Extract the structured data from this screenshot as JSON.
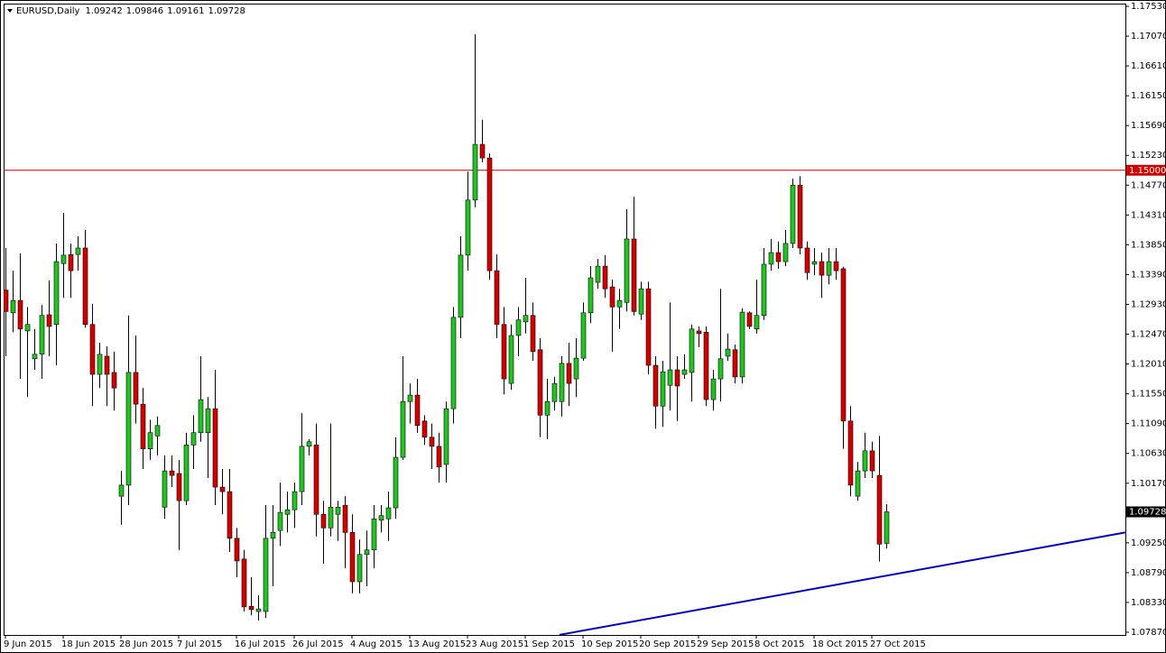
{
  "chart_data": {
    "type": "candlestick",
    "title": "EURUSD,Daily",
    "categories": [
      "9 Jun 2015",
      null,
      null,
      null,
      null,
      null,
      null,
      null,
      "18 Jun 2015",
      null,
      null,
      null,
      null,
      null,
      null,
      null,
      "28 Jun 2015",
      null,
      null,
      null,
      null,
      null,
      null,
      null,
      "7 Jul 2015",
      null,
      null,
      null,
      null,
      null,
      null,
      null,
      "16 Jul 2015",
      null,
      null,
      null,
      null,
      null,
      null,
      null,
      "26 Jul 2015",
      null,
      null,
      null,
      null,
      null,
      null,
      null,
      "4 Aug 2015",
      null,
      null,
      null,
      null,
      null,
      null,
      null,
      "13 Aug 2015",
      null,
      null,
      null,
      null,
      null,
      null,
      null,
      "23 Aug 2015",
      null,
      null,
      null,
      null,
      null,
      null,
      null,
      "1 Sep 2015",
      null,
      null,
      null,
      null,
      null,
      null,
      null,
      "10 Sep 2015",
      null,
      null,
      null,
      null,
      null,
      null,
      null,
      "20 Sep 2015",
      null,
      null,
      null,
      null,
      null,
      null,
      null,
      "29 Sep 2015",
      null,
      null,
      null,
      null,
      null,
      null,
      null,
      "8 Oct 2015",
      null,
      null,
      null,
      null,
      null,
      null,
      null,
      "18 Oct 2015",
      null,
      null,
      null,
      null,
      null,
      null,
      null,
      "27 Oct 2015",
      null,
      null
    ],
    "open": [
      1.1315,
      1.128,
      1.1299,
      1.1252,
      1.1209,
      1.1216,
      1.1277,
      1.1262,
      1.1356,
      1.137,
      1.137,
      1.138,
      1.1262,
      1.1185,
      1.1213,
      1.1188,
      1.0997,
      1.1014,
      1.1188,
      1.1139,
      1.107,
      1.109,
      1.098,
      1.1036,
      1.1032,
      1.099,
      1.1076,
      1.1095,
      1.1095,
      1.1132,
      1.1011,
      1.1004,
      1.0932,
      1.09,
      1.0827,
      1.0819,
      1.0819,
      1.0932,
      1.0944,
      1.0969,
      1.0976,
      1.1004,
      1.1074,
      1.1076,
      1.0969,
      1.0948,
      1.0969,
      1.0983,
      1.0941,
      1.0865,
      1.0907,
      1.0914,
      1.096,
      1.0962,
      1.0979,
      1.1057,
      1.1143,
      1.1153,
      1.1113,
      1.1088,
      1.1074,
      1.1046,
      1.1132,
      1.1273,
      1.1369,
      1.1454,
      1.154,
      1.1519,
      1.1345,
      1.1262,
      1.1171,
      1.1245,
      1.1266,
      1.1276,
      1.1223,
      1.1122,
      1.1143,
      1.1143,
      1.1202,
      1.1178,
      1.121,
      1.128,
      1.1327,
      1.1352,
      1.132,
      1.1289,
      1.1296,
      1.1394,
      1.1278,
      1.1317,
      1.1199,
      1.1136,
      1.1168,
      1.1192,
      1.1185,
      1.1188,
      1.1252,
      1.125,
      1.1146,
      1.1178,
      1.1213,
      1.1223,
      1.1181,
      1.128,
      1.1255,
      1.1276,
      1.1355,
      1.1373,
      1.1359,
      1.1387,
      1.1477,
      1.138,
      1.1355,
      1.1359,
      1.1338,
      1.1359,
      1.1348,
      1.1113,
      1.0997,
      1.1036,
      1.1067,
      1.1029,
      1.09242
    ],
    "high": [
      1.138,
      1.1345,
      1.1372,
      1.1289,
      1.1255,
      1.1292,
      1.133,
      1.1387,
      1.1434,
      1.1387,
      1.1398,
      1.1408,
      1.1294,
      1.1234,
      1.1228,
      1.122,
      1.1036,
      1.1276,
      1.1245,
      1.1164,
      1.1115,
      1.112,
      1.106,
      1.106,
      1.1053,
      1.1095,
      1.1122,
      1.1213,
      1.115,
      1.1192,
      1.1039,
      1.1039,
      1.0948,
      1.0914,
      1.0872,
      1.0844,
      1.0983,
      1.0983,
      1.1018,
      1.1004,
      1.1018,
      1.1125,
      1.1085,
      1.1109,
      1.099,
      1.1109,
      1.099,
      1.0997,
      1.0969,
      1.093,
      1.0944,
      1.0983,
      1.0983,
      1.1004,
      1.1088,
      1.1213,
      1.1171,
      1.1178,
      1.1122,
      1.1109,
      1.1095,
      1.1143,
      1.1289,
      1.1398,
      1.1498,
      1.171,
      1.1578,
      1.1526,
      1.137,
      1.1289,
      1.1262,
      1.1289,
      1.1334,
      1.1296,
      1.1241,
      1.1178,
      1.1181,
      1.1213,
      1.1234,
      1.1241,
      1.1296,
      1.1352,
      1.1363,
      1.1369,
      1.1331,
      1.1317,
      1.144,
      1.1459,
      1.1328,
      1.1328,
      1.1213,
      1.1206,
      1.1296,
      1.1213,
      1.1216,
      1.1262,
      1.1259,
      1.1259,
      1.1192,
      1.1317,
      1.1248,
      1.1231,
      1.1287,
      1.1282,
      1.1331,
      1.138,
      1.1394,
      1.139,
      1.1408,
      1.1487,
      1.1491,
      1.139,
      1.138,
      1.1373,
      1.138,
      1.138,
      1.1351,
      1.1136,
      1.105,
      1.1095,
      1.1081,
      1.109,
      1.09846
    ],
    "low": [
      1.1213,
      1.125,
      1.1178,
      1.115,
      1.1192,
      1.1178,
      1.1213,
      1.1199,
      1.1303,
      1.1303,
      1.1345,
      1.1257,
      1.1136,
      1.1164,
      1.1136,
      1.1129,
      1.0953,
      1.0983,
      1.1109,
      1.1039,
      1.1053,
      1.106,
      1.0962,
      1.1011,
      1.0914,
      1.0983,
      1.1039,
      1.1081,
      1.1025,
      1.0983,
      1.0969,
      1.0911,
      1.0872,
      1.0819,
      1.0813,
      1.0805,
      1.0809,
      1.0858,
      1.092,
      1.0941,
      1.0948,
      1.0983,
      1.106,
      1.0935,
      1.0893,
      1.0935,
      1.0928,
      1.0886,
      1.0847,
      1.0847,
      1.0858,
      1.0886,
      1.0941,
      1.0928,
      1.0962,
      1.1053,
      1.1109,
      1.1095,
      1.1076,
      1.1039,
      1.1018,
      1.1018,
      1.1109,
      1.1241,
      1.1345,
      1.1443,
      1.1512,
      1.1331,
      1.1241,
      1.1154,
      1.1161,
      1.1213,
      1.1248,
      1.1206,
      1.1088,
      1.1085,
      1.1129,
      1.112,
      1.1136,
      1.115,
      1.1206,
      1.1264,
      1.1317,
      1.1303,
      1.122,
      1.1255,
      1.1282,
      1.1276,
      1.1269,
      1.1185,
      1.1101,
      1.1104,
      1.1129,
      1.1113,
      1.1178,
      1.1143,
      1.1227,
      1.1136,
      1.1129,
      1.1143,
      1.1206,
      1.1171,
      1.1171,
      1.1255,
      1.1248,
      1.1269,
      1.1345,
      1.1348,
      1.1352,
      1.138,
      1.137,
      1.1331,
      1.1338,
      1.1303,
      1.1324,
      1.1331,
      1.107,
      1.0997,
      1.099,
      1.1025,
      1.1025,
      1.0896,
      1.09161
    ],
    "close": [
      1.1282,
      1.1299,
      1.1255,
      1.1262,
      1.1216,
      1.1276,
      1.1259,
      1.1359,
      1.1369,
      1.1345,
      1.138,
      1.1262,
      1.1185,
      1.1216,
      1.1185,
      1.1164,
      1.1014,
      1.1188,
      1.1139,
      1.107,
      1.1095,
      1.1106,
      1.1036,
      1.1029,
      1.099,
      1.1076,
      1.1095,
      1.1146,
      1.1132,
      1.1011,
      1.1004,
      1.0932,
      1.0897,
      1.0826,
      1.0822,
      1.0823,
      1.0932,
      1.0941,
      1.0972,
      1.0976,
      1.1004,
      1.1074,
      1.1081,
      1.0969,
      1.0948,
      1.098,
      1.098,
      1.0941,
      1.0865,
      1.0907,
      1.0914,
      1.0962,
      1.0967,
      1.0979,
      1.1057,
      1.1143,
      1.1153,
      1.1106,
      1.1088,
      1.1074,
      1.1042,
      1.1132,
      1.1273,
      1.1369,
      1.1454,
      1.154,
      1.1519,
      1.1345,
      1.1262,
      1.1178,
      1.1245,
      1.1269,
      1.1276,
      1.122,
      1.1122,
      1.1143,
      1.1171,
      1.1202,
      1.1171,
      1.121,
      1.128,
      1.1334,
      1.1352,
      1.1317,
      1.1289,
      1.1299,
      1.1394,
      1.1282,
      1.1317,
      1.1199,
      1.1136,
      1.1189,
      1.1192,
      1.1167,
      1.1192,
      1.1255,
      1.1248,
      1.1146,
      1.1178,
      1.1209,
      1.1224,
      1.1181,
      1.1281,
      1.1259,
      1.1276,
      1.1355,
      1.1373,
      1.1359,
      1.1387,
      1.1477,
      1.138,
      1.1342,
      1.1359,
      1.1338,
      1.1359,
      1.1345,
      1.1113,
      1.1014,
      1.1036,
      1.1067,
      1.1036,
      1.0923,
      1.09728
    ],
    "up_color": "#22c422",
    "down_color": "#d40000",
    "ylim": [
      1.07828,
      1.17572
    ],
    "yticks": [
      {
        "value": 1.1753,
        "label": "1.17530"
      },
      {
        "value": 1.1707,
        "label": "1.17070"
      },
      {
        "value": 1.1661,
        "label": "1.16610"
      },
      {
        "value": 1.1615,
        "label": "1.16150"
      },
      {
        "value": 1.1569,
        "label": "1.15690"
      },
      {
        "value": 1.1523,
        "label": "1.15230"
      },
      {
        "value": 1.1477,
        "label": "1.14770"
      },
      {
        "value": 1.1431,
        "label": "1.14310"
      },
      {
        "value": 1.1385,
        "label": "1.13850"
      },
      {
        "value": 1.1339,
        "label": "1.13390"
      },
      {
        "value": 1.1293,
        "label": "1.12930"
      },
      {
        "value": 1.1247,
        "label": "1.12470"
      },
      {
        "value": 1.1201,
        "label": "1.12010"
      },
      {
        "value": 1.1155,
        "label": "1.11550"
      },
      {
        "value": 1.1109,
        "label": "1.11090"
      },
      {
        "value": 1.1063,
        "label": "1.10630"
      },
      {
        "value": 1.1017,
        "label": "1.10170"
      },
      {
        "value": 1.0925,
        "label": "1.09250"
      },
      {
        "value": 1.0879,
        "label": "1.08790"
      },
      {
        "value": 1.0833,
        "label": "1.08330"
      },
      {
        "value": 1.0787,
        "label": "1.07870"
      }
    ],
    "grid": false,
    "hline": {
      "value": 1.15,
      "label": "1.15000",
      "color": "#d40000"
    },
    "trendline": {
      "x": [
        76.75,
        155.1
      ],
      "y": [
        1.0783,
        1.0941
      ],
      "color": "#0000c8"
    }
  }
}
